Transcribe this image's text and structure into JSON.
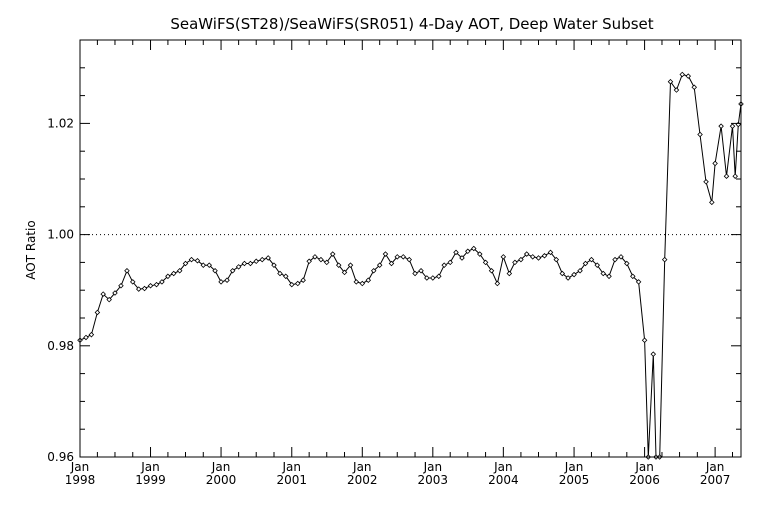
{
  "chart_data": {
    "type": "line",
    "title": "SeaWiFS(ST28)/SeaWiFS(SR051) 4-Day AOT, Deep Water Subset",
    "xlabel": "",
    "ylabel": "AOT Ratio",
    "xlim": [
      "1998-01-01",
      "2007-05-15"
    ],
    "ylim": [
      0.96,
      1.035
    ],
    "y_ticks": [
      "0.96",
      "0.98",
      "1.00",
      "1.02"
    ],
    "x_ticks": [
      {
        "date": "1998-01-01",
        "month": "Jan",
        "year": "1998"
      },
      {
        "date": "1999-01-01",
        "month": "Jan",
        "year": "1999"
      },
      {
        "date": "2000-01-01",
        "month": "Jan",
        "year": "2000"
      },
      {
        "date": "2001-01-01",
        "month": "Jan",
        "year": "2001"
      },
      {
        "date": "2002-01-01",
        "month": "Jan",
        "year": "2002"
      },
      {
        "date": "2003-01-01",
        "month": "Jan",
        "year": "2003"
      },
      {
        "date": "2004-01-01",
        "month": "Jan",
        "year": "2004"
      },
      {
        "date": "2005-01-01",
        "month": "Jan",
        "year": "2005"
      },
      {
        "date": "2006-01-01",
        "month": "Jan",
        "year": "2006"
      },
      {
        "date": "2007-01-01",
        "month": "Jan",
        "year": "2007"
      }
    ],
    "reference_line": {
      "y": 1.0,
      "style": "dotted"
    },
    "grid": false,
    "series": [
      {
        "marker": "diamond",
        "points": [
          [
            "1998-01-01",
            0.981
          ],
          [
            "1998-02-01",
            0.9815
          ],
          [
            "1998-03-01",
            0.982
          ],
          [
            "1998-04-01",
            0.986
          ],
          [
            "1998-05-01",
            0.9893
          ],
          [
            "1998-06-01",
            0.9883
          ],
          [
            "1998-07-01",
            0.9895
          ],
          [
            "1998-08-01",
            0.9908
          ],
          [
            "1998-09-01",
            0.9935
          ],
          [
            "1998-10-01",
            0.9915
          ],
          [
            "1998-11-01",
            0.9902
          ],
          [
            "1998-12-01",
            0.9903
          ],
          [
            "1999-01-01",
            0.9908
          ],
          [
            "1999-02-01",
            0.991
          ],
          [
            "1999-03-01",
            0.9915
          ],
          [
            "1999-04-01",
            0.9925
          ],
          [
            "1999-05-01",
            0.993
          ],
          [
            "1999-06-01",
            0.9935
          ],
          [
            "1999-07-01",
            0.9948
          ],
          [
            "1999-08-01",
            0.9955
          ],
          [
            "1999-09-01",
            0.9953
          ],
          [
            "1999-10-01",
            0.9945
          ],
          [
            "1999-11-01",
            0.9945
          ],
          [
            "1999-12-01",
            0.9935
          ],
          [
            "2000-01-01",
            0.9915
          ],
          [
            "2000-02-01",
            0.9918
          ],
          [
            "2000-03-01",
            0.9935
          ],
          [
            "2000-04-01",
            0.9942
          ],
          [
            "2000-05-01",
            0.9948
          ],
          [
            "2000-06-01",
            0.9948
          ],
          [
            "2000-07-01",
            0.9952
          ],
          [
            "2000-08-01",
            0.9955
          ],
          [
            "2000-09-01",
            0.9958
          ],
          [
            "2000-10-01",
            0.9945
          ],
          [
            "2000-11-01",
            0.993
          ],
          [
            "2000-12-01",
            0.9925
          ],
          [
            "2001-01-01",
            0.991
          ],
          [
            "2001-02-01",
            0.9912
          ],
          [
            "2001-03-01",
            0.9918
          ],
          [
            "2001-04-01",
            0.9952
          ],
          [
            "2001-05-01",
            0.996
          ],
          [
            "2001-06-01",
            0.9955
          ],
          [
            "2001-07-01",
            0.995
          ],
          [
            "2001-08-01",
            0.9965
          ],
          [
            "2001-09-01",
            0.9945
          ],
          [
            "2001-10-01",
            0.9932
          ],
          [
            "2001-11-01",
            0.9945
          ],
          [
            "2001-12-01",
            0.9915
          ],
          [
            "2002-01-01",
            0.9912
          ],
          [
            "2002-02-01",
            0.9918
          ],
          [
            "2002-03-01",
            0.9935
          ],
          [
            "2002-04-01",
            0.9945
          ],
          [
            "2002-05-01",
            0.9965
          ],
          [
            "2002-06-01",
            0.9948
          ],
          [
            "2002-07-01",
            0.996
          ],
          [
            "2002-08-01",
            0.996
          ],
          [
            "2002-09-01",
            0.9955
          ],
          [
            "2002-10-01",
            0.993
          ],
          [
            "2002-11-01",
            0.9935
          ],
          [
            "2002-12-01",
            0.9922
          ],
          [
            "2003-01-01",
            0.9922
          ],
          [
            "2003-02-01",
            0.9925
          ],
          [
            "2003-03-01",
            0.9945
          ],
          [
            "2003-04-01",
            0.995
          ],
          [
            "2003-05-01",
            0.9968
          ],
          [
            "2003-06-01",
            0.9958
          ],
          [
            "2003-07-01",
            0.997
          ],
          [
            "2003-08-01",
            0.9975
          ],
          [
            "2003-09-01",
            0.9965
          ],
          [
            "2003-10-01",
            0.995
          ],
          [
            "2003-11-01",
            0.9935
          ],
          [
            "2003-12-01",
            0.9912
          ],
          [
            "2004-01-01",
            0.996
          ],
          [
            "2004-02-01",
            0.993
          ],
          [
            "2004-03-01",
            0.995
          ],
          [
            "2004-04-01",
            0.9955
          ],
          [
            "2004-05-01",
            0.9965
          ],
          [
            "2004-06-01",
            0.996
          ],
          [
            "2004-07-01",
            0.9958
          ],
          [
            "2004-08-01",
            0.9962
          ],
          [
            "2004-09-01",
            0.9968
          ],
          [
            "2004-10-01",
            0.9955
          ],
          [
            "2004-11-01",
            0.993
          ],
          [
            "2004-12-01",
            0.9922
          ],
          [
            "2005-01-01",
            0.9928
          ],
          [
            "2005-02-01",
            0.9935
          ],
          [
            "2005-03-01",
            0.9948
          ],
          [
            "2005-04-01",
            0.9955
          ],
          [
            "2005-05-01",
            0.9945
          ],
          [
            "2005-06-01",
            0.993
          ],
          [
            "2005-07-01",
            0.9925
          ],
          [
            "2005-08-01",
            0.9955
          ],
          [
            "2005-09-01",
            0.996
          ],
          [
            "2005-10-01",
            0.9948
          ],
          [
            "2005-11-01",
            0.9925
          ],
          [
            "2005-12-01",
            0.9915
          ],
          [
            "2006-01-01",
            0.981
          ],
          [
            "2006-01-20",
            0.96
          ],
          [
            "2006-02-15",
            0.9785
          ],
          [
            "2006-03-01",
            0.96
          ],
          [
            "2006-03-20",
            0.96
          ],
          [
            "2006-04-15",
            0.9955
          ],
          [
            "2006-05-15",
            1.0275
          ],
          [
            "2006-06-15",
            1.026
          ],
          [
            "2006-07-15",
            1.0288
          ],
          [
            "2006-08-15",
            1.0285
          ],
          [
            "2006-09-15",
            1.0265
          ],
          [
            "2006-10-15",
            1.018
          ],
          [
            "2006-11-15",
            1.0095
          ],
          [
            "2006-12-15",
            1.0058
          ],
          [
            "2007-01-01",
            1.0128
          ],
          [
            "2007-02-01",
            1.0195
          ],
          [
            "2007-03-01",
            1.0105
          ],
          [
            "2007-04-01",
            1.0195
          ],
          [
            "2007-04-15",
            1.0105
          ],
          [
            "2007-05-01",
            1.0198
          ],
          [
            "2007-05-15",
            1.0235
          ]
        ]
      }
    ]
  }
}
